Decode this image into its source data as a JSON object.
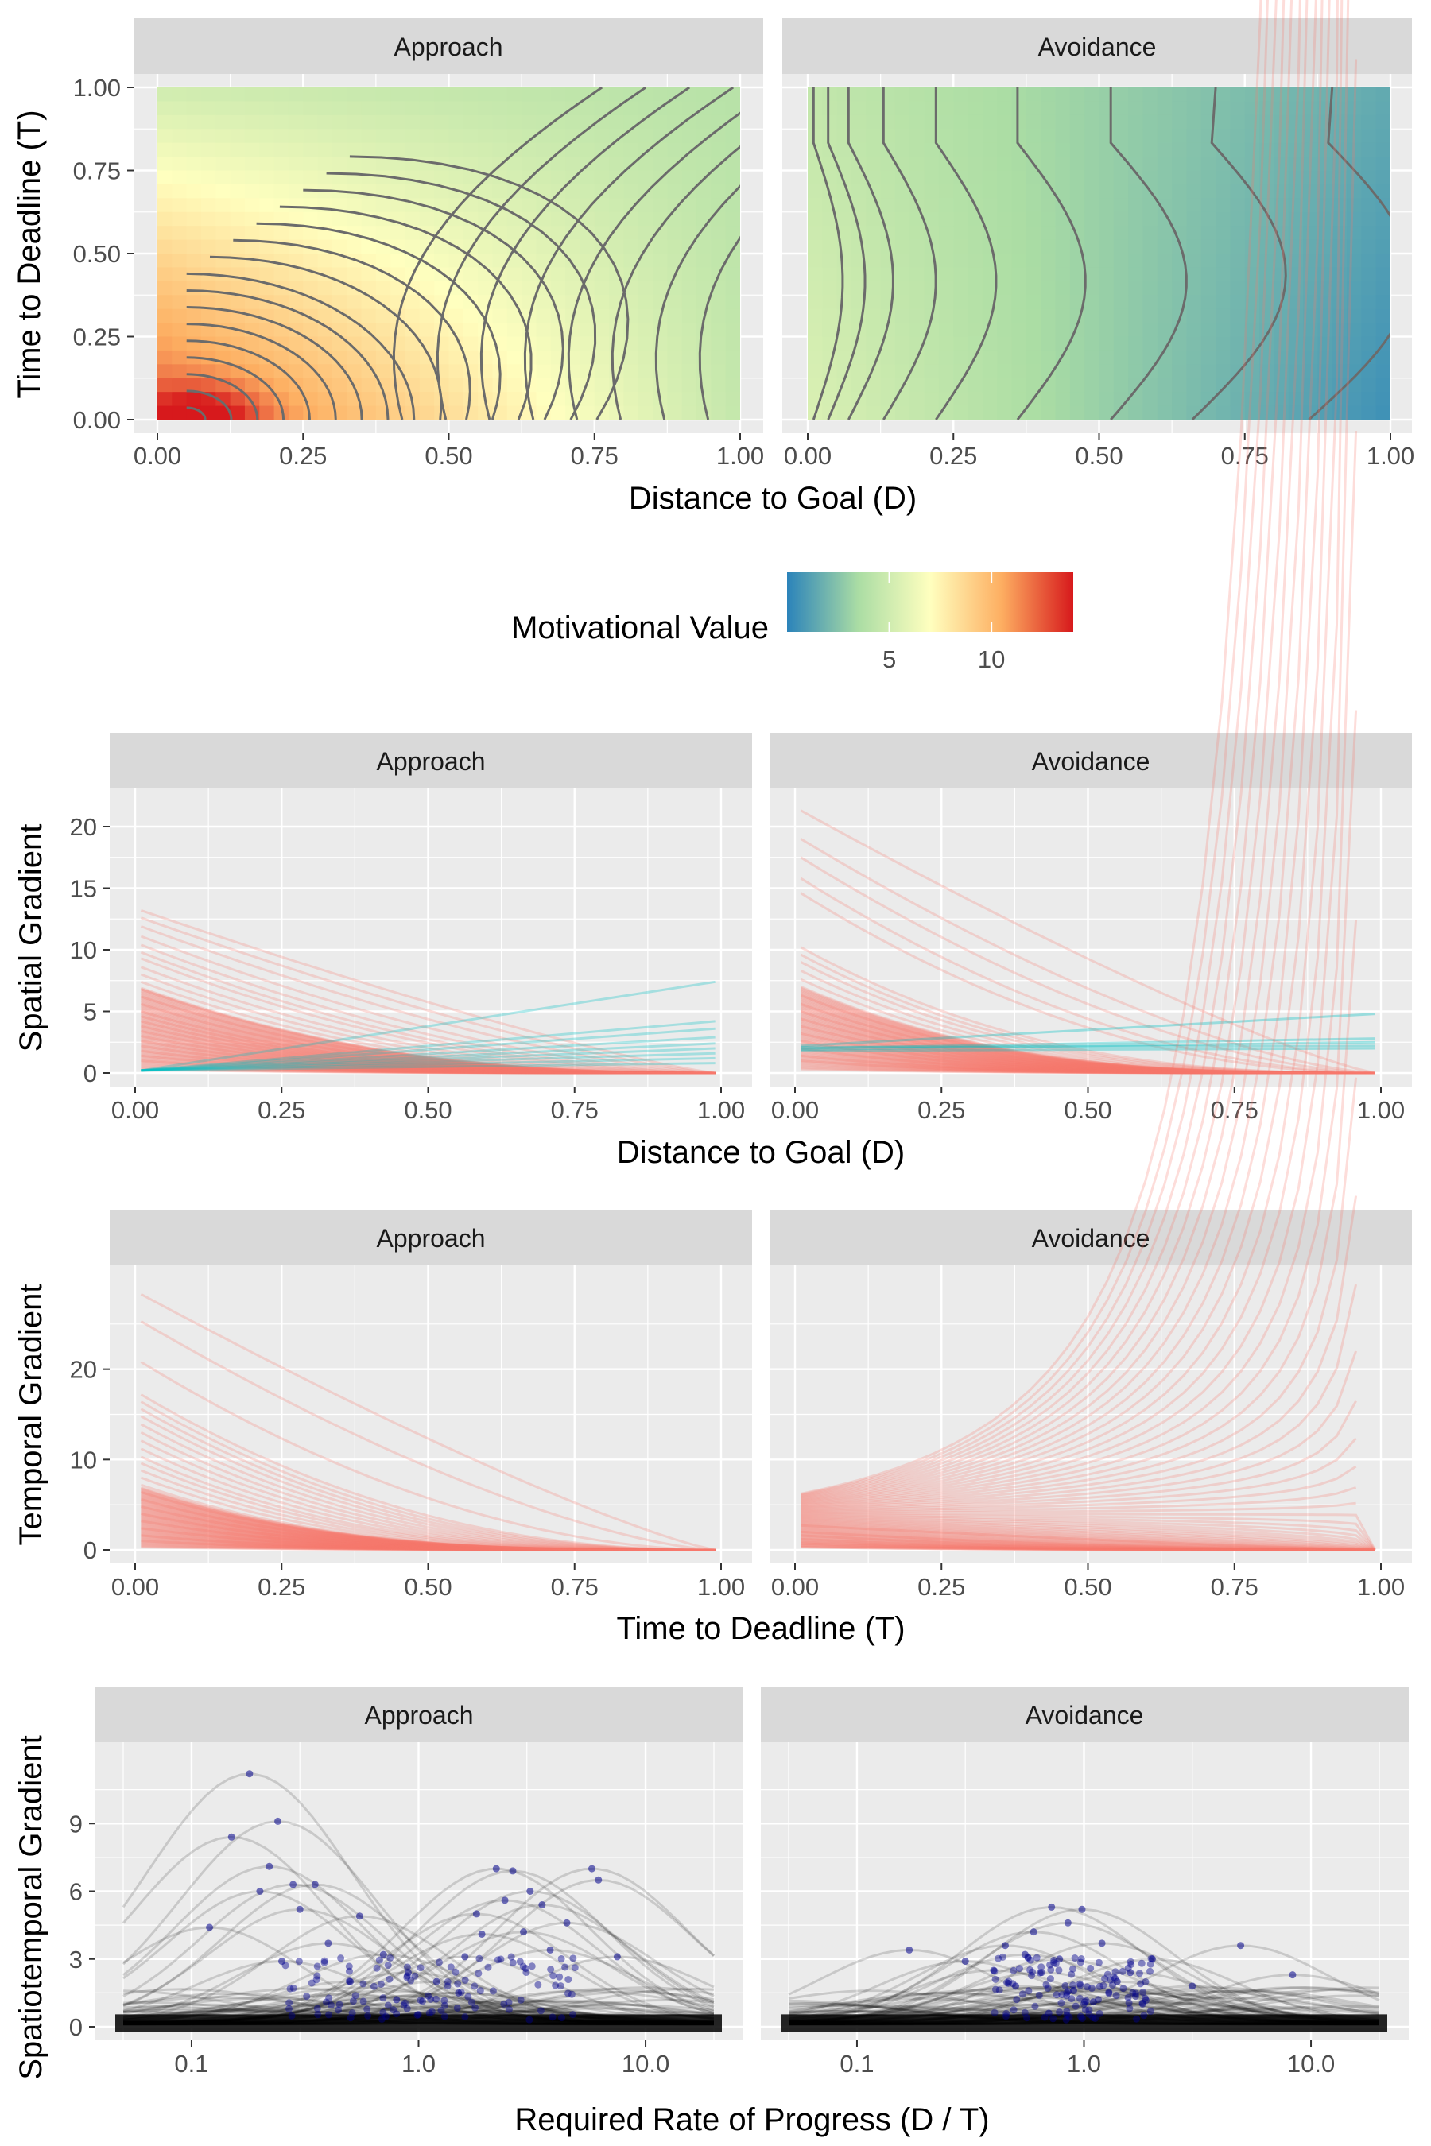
{
  "chart_data": [
    {
      "type": "heatmap",
      "facets": [
        "Approach",
        "Avoidance"
      ],
      "xlabel": "Distance to Goal (D)",
      "ylabel": "Time to Deadline (T)",
      "xlim": [
        0,
        1
      ],
      "ylim": [
        0,
        1
      ],
      "x_ticks": [
        "0.00",
        "0.25",
        "0.50",
        "0.75",
        "1.00"
      ],
      "y_ticks": [
        "0.00",
        "0.25",
        "0.50",
        "0.75",
        "1.00"
      ],
      "contours": true,
      "legend": {
        "title": "Motivational Value",
        "position": "bottom",
        "range": [
          0,
          14
        ],
        "ticks": [
          "5",
          "10"
        ],
        "colors": [
          "#2b83ba",
          "#abdda4",
          "#ffffbf",
          "#fdae61",
          "#d7191c"
        ]
      },
      "corner_values": {
        "Approach": {
          "D0_T0": 12.5,
          "D1_T0": 4.5,
          "D0_T1": 5.0,
          "D1_T1": 4.0
        },
        "Avoidance": {
          "D0_T0": 5.5,
          "D1_T0": 0.5,
          "D0_T1": 4.5,
          "D1_T1": 1.5
        }
      }
    },
    {
      "type": "line",
      "facets": [
        "Approach",
        "Avoidance"
      ],
      "xlabel": "Distance to Goal (D)",
      "ylabel": "Spatial Gradient",
      "xlim": [
        0,
        1
      ],
      "ylim": [
        0,
        22
      ],
      "x_ticks": [
        "0.00",
        "0.25",
        "0.50",
        "0.75",
        "1.00"
      ],
      "y_ticks": [
        "0",
        "5",
        "10",
        "15",
        "20"
      ],
      "series_colors": [
        "#f8766d",
        "#00bfc4"
      ],
      "series": {
        "Approach": {
          "decreasing_start_values": [
            13.2,
            12.6,
            11.9,
            11.1,
            10.4,
            9.8,
            9.3,
            8.6,
            8.0,
            7.4,
            6.8,
            6.2,
            5.6,
            5.0,
            4.6,
            4.2,
            3.8,
            3.4,
            3.0,
            2.6,
            2.2,
            1.8,
            1.4,
            1.0
          ],
          "increasing_end_values": [
            7.4,
            4.2,
            3.6,
            2.9,
            2.4,
            2.0,
            1.6,
            1.2,
            0.8
          ]
        },
        "Avoidance": {
          "decreasing_start_values": [
            21.3,
            19.0,
            17.5,
            15.8,
            14.6,
            10.2,
            9.6,
            9.0,
            8.3,
            7.6,
            7.0,
            6.3,
            5.6,
            5.0,
            4.4,
            3.8,
            3.2,
            2.6,
            2.0,
            1.4,
            1.0
          ],
          "flat_values": [
            [
              2.2,
              4.8
            ],
            [
              2.0,
              2.8
            ],
            [
              1.9,
              2.5
            ],
            [
              2.1,
              2.2
            ],
            [
              1.8,
              2.0
            ]
          ]
        }
      }
    },
    {
      "type": "line",
      "facets": [
        "Approach",
        "Avoidance"
      ],
      "xlabel": "Time to Deadline (T)",
      "ylabel": "Temporal Gradient",
      "xlim": [
        0,
        1
      ],
      "ylim": [
        0,
        30
      ],
      "x_ticks": [
        "0.00",
        "0.25",
        "0.50",
        "0.75",
        "1.00"
      ],
      "y_ticks": [
        "0",
        "10",
        "20"
      ],
      "series_colors": [
        "#f8766d"
      ],
      "series": {
        "Approach": {
          "start_values": [
            28.3,
            25.3,
            20.8,
            17.2,
            16.4,
            15.6,
            14.8,
            13.9,
            13.0,
            12.1,
            11.2,
            10.3,
            9.6,
            8.8,
            8.0,
            7.2,
            6.4,
            5.6,
            4.8,
            4.0,
            3.2,
            2.4,
            1.6,
            1.0
          ]
        },
        "Avoidance": {
          "start_values": [
            2.7,
            2.0,
            1.6,
            1.2,
            0.9,
            0.7,
            0.5,
            0.3
          ]
        }
      }
    },
    {
      "type": "scatter",
      "facets": [
        "Approach",
        "Avoidance"
      ],
      "xlabel": "Required Rate of Progress (D / T)",
      "ylabel": "Spatiotemporal Gradient",
      "x_scale": "log10",
      "xlim": [
        0.05,
        20
      ],
      "ylim": [
        0,
        12
      ],
      "x_ticks": [
        "0.1",
        "1.0",
        "10.0"
      ],
      "y_ticks": [
        "0",
        "3",
        "6",
        "9"
      ],
      "curve_color": "#000000",
      "point_color": "#00008b",
      "peaks": {
        "Approach": [
          [
            0.18,
            11.2
          ],
          [
            0.24,
            9.1
          ],
          [
            0.15,
            8.4
          ],
          [
            0.22,
            7.1
          ],
          [
            0.35,
            6.3
          ],
          [
            0.3,
            5.2
          ],
          [
            0.55,
            4.9
          ],
          [
            0.12,
            4.4
          ],
          [
            0.4,
            3.7
          ],
          [
            0.7,
            3.2
          ],
          [
            0.25,
            2.9
          ],
          [
            0.9,
            2.4
          ],
          [
            1.2,
            2.0
          ],
          [
            1.6,
            3.1
          ],
          [
            1.9,
            4.1
          ],
          [
            2.2,
            7.0
          ],
          [
            2.6,
            6.9
          ],
          [
            3.1,
            6.0
          ],
          [
            3.5,
            5.4
          ],
          [
            5.8,
            7.0
          ],
          [
            6.2,
            6.5
          ],
          [
            4.5,
            4.6
          ],
          [
            2.9,
            4.2
          ],
          [
            7.5,
            3.1
          ],
          [
            1.5,
            1.5
          ],
          [
            0.8,
            1.2
          ],
          [
            0.5,
            2.0
          ],
          [
            2.4,
            5.6
          ],
          [
            1.8,
            5.0
          ],
          [
            3.8,
            3.4
          ],
          [
            0.2,
            6.0
          ],
          [
            0.28,
            6.3
          ]
        ],
        "Avoidance": [
          [
            0.17,
            3.4
          ],
          [
            0.45,
            3.6
          ],
          [
            0.72,
            5.3
          ],
          [
            0.98,
            5.2
          ],
          [
            0.85,
            4.6
          ],
          [
            0.6,
            4.2
          ],
          [
            0.55,
            3.2
          ],
          [
            0.78,
            3.0
          ],
          [
            1.2,
            3.7
          ],
          [
            1.6,
            2.4
          ],
          [
            2.0,
            3.0
          ],
          [
            3.0,
            1.8
          ],
          [
            4.9,
            3.6
          ],
          [
            8.3,
            2.3
          ],
          [
            0.65,
            2.4
          ],
          [
            0.5,
            1.8
          ],
          [
            0.9,
            1.6
          ],
          [
            0.4,
            2.5
          ],
          [
            1.4,
            2.0
          ],
          [
            0.3,
            2.9
          ],
          [
            0.7,
            0.6
          ],
          [
            1.1,
            1.1
          ]
        ]
      }
    }
  ]
}
